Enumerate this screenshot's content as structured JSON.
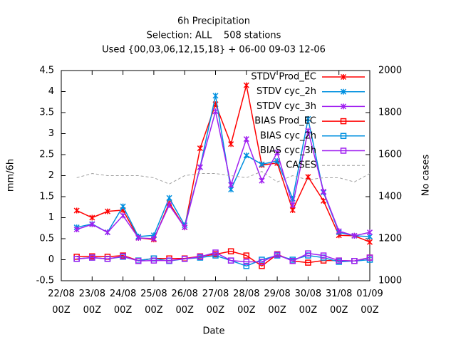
{
  "chart_data": {
    "type": "line",
    "title": "6h Precipitation",
    "subtitle": "Selection: ALL    508 stations",
    "subtitle2": "Used {00,03,06,12,15,18} + 06-00 09-03 12-06",
    "x_label": "Date",
    "y_label": "mm/6h",
    "y2_label": "No cases",
    "x": [
      0.5,
      1,
      1.5,
      2,
      2.5,
      3,
      3.5,
      4,
      4.5,
      5,
      5.5,
      6,
      6.5,
      7,
      7.5,
      8,
      8.5,
      9,
      9.5,
      10
    ],
    "xlim": [
      0,
      10
    ],
    "xticks": [
      {
        "value": 0,
        "label": "22/08 00Z"
      },
      {
        "value": 1,
        "label": "23/08 00Z"
      },
      {
        "value": 2,
        "label": "24/08 00Z"
      },
      {
        "value": 3,
        "label": "25/08 00Z"
      },
      {
        "value": 4,
        "label": "26/08 00Z"
      },
      {
        "value": 5,
        "label": "27/08 00Z"
      },
      {
        "value": 6,
        "label": "28/08 00Z"
      },
      {
        "value": 7,
        "label": "29/08 00Z"
      },
      {
        "value": 8,
        "label": "30/08 00Z"
      },
      {
        "value": 9,
        "label": "31/08 00Z"
      },
      {
        "value": 10,
        "label": "01/09 00Z"
      }
    ],
    "ylim": [
      -0.5,
      4.5
    ],
    "yticks": [
      -0.5,
      0,
      0.5,
      1,
      1.5,
      2,
      2.5,
      3,
      3.5,
      4,
      4.5
    ],
    "y2lim": [
      1000,
      2000
    ],
    "y2ticks": [
      1000,
      1200,
      1400,
      1600,
      1800,
      2000
    ],
    "grid": false,
    "legend": "top-right",
    "series": [
      {
        "name": "STDV Prod_EC",
        "color": "#ff0000",
        "marker": "cross",
        "values": [
          1.17,
          1.0,
          1.15,
          1.18,
          0.52,
          0.48,
          1.35,
          0.77,
          2.65,
          3.7,
          2.75,
          4.15,
          2.25,
          2.3,
          1.18,
          1.97,
          1.4,
          0.58,
          0.57,
          0.42
        ]
      },
      {
        "name": "STDV cyc_2h",
        "color": "#0090e0",
        "marker": "cross",
        "values": [
          0.77,
          0.85,
          0.65,
          1.27,
          0.55,
          0.58,
          1.47,
          0.82,
          2.2,
          3.9,
          1.67,
          2.48,
          2.27,
          2.35,
          1.45,
          3.35,
          1.6,
          0.65,
          0.57,
          0.55
        ]
      },
      {
        "name": "STDV cyc_3h",
        "color": "#a020f0",
        "marker": "cross",
        "values": [
          0.72,
          0.84,
          0.65,
          1.05,
          0.52,
          0.5,
          1.3,
          0.77,
          2.2,
          3.53,
          1.78,
          2.87,
          1.88,
          2.55,
          1.3,
          3.07,
          1.62,
          0.68,
          0.57,
          0.65
        ]
      },
      {
        "name": "BIAS Prod_EC",
        "color": "#ff0000",
        "marker": "square",
        "values": [
          0.07,
          0.08,
          0.07,
          0.1,
          -0.02,
          0.03,
          0.03,
          0.03,
          0.08,
          0.13,
          0.2,
          0.1,
          -0.15,
          0.13,
          -0.03,
          -0.07,
          -0.02,
          -0.02,
          -0.03,
          0.05
        ]
      },
      {
        "name": "BIAS cyc_2h",
        "color": "#0090e0",
        "marker": "square",
        "values": [
          0.02,
          0.05,
          0.02,
          0.07,
          -0.02,
          0.03,
          -0.03,
          0.02,
          0.05,
          0.1,
          -0.02,
          -0.15,
          0.0,
          0.1,
          0.0,
          0.1,
          0.05,
          -0.05,
          -0.03,
          0.0
        ]
      },
      {
        "name": "BIAS cyc_3h",
        "color": "#a020f0",
        "marker": "square",
        "values": [
          0.02,
          0.05,
          0.02,
          0.08,
          -0.03,
          -0.02,
          -0.02,
          0.02,
          0.07,
          0.17,
          -0.02,
          -0.05,
          -0.05,
          0.12,
          -0.03,
          0.15,
          0.1,
          -0.02,
          -0.03,
          0.05
        ]
      },
      {
        "name": "CASES",
        "color": "#a0a0a0",
        "marker": "none",
        "dash": true,
        "axis": "y2",
        "values": [
          1490,
          1510,
          1500,
          1500,
          1500,
          1490,
          1460,
          1500,
          1510,
          1510,
          1500,
          1490,
          1520,
          1470,
          1500,
          1480,
          1490,
          1490,
          1470,
          1510
        ]
      }
    ]
  }
}
